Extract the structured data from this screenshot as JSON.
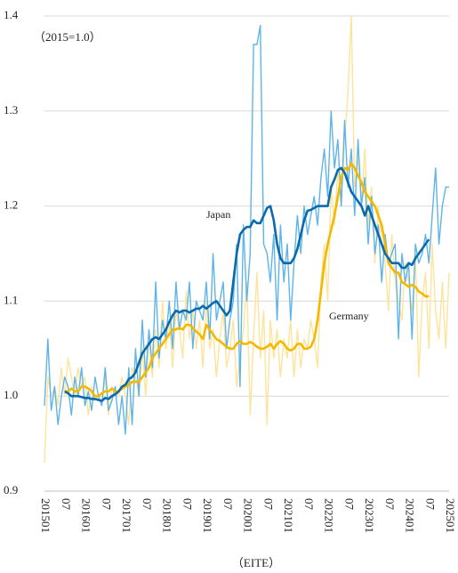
{
  "chart_data": {
    "type": "line",
    "subtitle": "（2015=1.0）",
    "source": "（EITE）",
    "categories": [
      "201501",
      null,
      null,
      null,
      null,
      null,
      "07",
      null,
      null,
      null,
      null,
      null,
      "201601",
      null,
      null,
      null,
      null,
      null,
      "07",
      null,
      null,
      null,
      null,
      null,
      "201701",
      null,
      null,
      null,
      null,
      null,
      "07",
      null,
      null,
      null,
      null,
      null,
      "201801",
      null,
      null,
      null,
      null,
      null,
      "07",
      null,
      null,
      null,
      null,
      null,
      "201901",
      null,
      null,
      null,
      null,
      null,
      "07",
      null,
      null,
      null,
      null,
      null,
      "202001",
      null,
      null,
      null,
      null,
      null,
      "07",
      null,
      null,
      null,
      null,
      null,
      "202101",
      null,
      null,
      null,
      null,
      null,
      "07",
      null,
      null,
      null,
      null,
      null,
      "202201",
      null,
      null,
      null,
      null,
      null,
      "07",
      null,
      null,
      null,
      null,
      null,
      "202301",
      null,
      null,
      null,
      null,
      null,
      "07",
      null,
      null,
      null,
      null,
      null,
      "202401",
      null,
      null,
      null,
      null,
      null,
      "07",
      null,
      null,
      null,
      null,
      null,
      "202501"
    ],
    "series": [
      {
        "color": "#fde49a",
        "values": [
          0.93,
          1.02,
          1.0,
          1.01,
          0.99,
          1.03,
          1.0,
          1.04,
          1.02,
          1.0,
          1.03,
          1.01,
          1.02,
          0.98,
          1.01,
          0.995,
          1.0,
          0.99,
          1.02,
          0.98,
          1.01,
          1.005,
          1.0,
          1.02,
          1.0,
          0.97,
          1.03,
          1.02,
          1.0,
          1.05,
          1.0,
          1.06,
          1.02,
          1.07,
          1.03,
          1.1,
          1.05,
          1.08,
          1.03,
          1.09,
          1.07,
          1.04,
          1.11,
          1.06,
          1.09,
          1.05,
          1.08,
          1.03,
          1.1,
          1.05,
          1.07,
          1.02,
          1.06,
          1.09,
          1.03,
          1.05,
          1.08,
          1.01,
          1.04,
          1.07,
          1.12,
          0.98,
          1.06,
          1.13,
          1.04,
          1.09,
          0.97,
          1.08,
          1.04,
          1.07,
          1.02,
          1.06,
          1.04,
          1.08,
          1.02,
          1.07,
          1.03,
          1.06,
          1.05,
          1.08,
          1.06,
          1.03,
          1.12,
          1.16,
          1.1,
          1.22,
          1.18,
          1.24,
          1.2,
          1.27,
          1.32,
          1.4,
          1.22,
          1.25,
          1.2,
          1.26,
          1.18,
          1.22,
          1.14,
          1.2,
          1.16,
          1.14,
          1.09,
          1.17,
          1.12,
          1.1,
          1.08,
          1.14,
          1.12,
          1.09,
          1.15,
          1.02,
          1.1,
          1.13,
          1.05,
          1.16,
          1.09,
          1.06,
          1.12,
          1.05,
          1.13
        ]
      },
      {
        "color": "#5eb4e8",
        "values": [
          0.99,
          1.06,
          0.985,
          1.01,
          0.97,
          1.0,
          1.02,
          1.01,
          0.98,
          1.02,
          1.0,
          1.03,
          0.99,
          1.005,
          0.985,
          1.02,
          1.0,
          0.99,
          1.03,
          0.985,
          0.995,
          1.01,
          0.97,
          1.0,
          0.96,
          1.03,
          0.97,
          1.05,
          1.0,
          1.08,
          1.02,
          1.07,
          1.03,
          1.12,
          1.04,
          1.08,
          1.06,
          1.1,
          1.05,
          1.12,
          1.07,
          1.09,
          1.08,
          1.12,
          1.05,
          1.1,
          1.09,
          1.08,
          1.12,
          1.06,
          1.15,
          1.08,
          1.1,
          1.12,
          1.05,
          1.08,
          1.1,
          1.16,
          1.01,
          1.18,
          1.1,
          1.15,
          1.37,
          1.37,
          1.39,
          1.16,
          1.15,
          1.12,
          1.17,
          1.08,
          1.18,
          1.12,
          1.16,
          1.08,
          1.14,
          1.19,
          1.15,
          1.2,
          1.17,
          1.19,
          1.21,
          1.18,
          1.23,
          1.26,
          1.21,
          1.3,
          1.24,
          1.27,
          1.2,
          1.29,
          1.22,
          1.26,
          1.19,
          1.27,
          1.2,
          1.23,
          1.16,
          1.21,
          1.15,
          1.18,
          1.12,
          1.17,
          1.14,
          1.15,
          1.16,
          1.06,
          1.15,
          1.12,
          1.14,
          1.06,
          1.16,
          1.14,
          1.15,
          1.17,
          1.14,
          1.19,
          1.24,
          1.16,
          1.2,
          1.22,
          1.22
        ]
      },
      {
        "name": "Germany",
        "color": "#f5b800",
        "values": [
          null,
          null,
          null,
          null,
          null,
          null,
          1.005,
          1.005,
          1.008,
          1.005,
          1.005,
          1.01,
          1.01,
          1.008,
          1.005,
          1.0,
          1.0,
          1.003,
          1.005,
          1.005,
          1.008,
          1.005,
          1.005,
          1.008,
          1.01,
          1.012,
          1.015,
          1.015,
          1.015,
          1.02,
          1.025,
          1.03,
          1.04,
          1.045,
          1.05,
          1.055,
          1.06,
          1.065,
          1.07,
          1.07,
          1.072,
          1.07,
          1.075,
          1.075,
          1.072,
          1.068,
          1.065,
          1.06,
          1.075,
          1.07,
          1.065,
          1.06,
          1.058,
          1.055,
          1.052,
          1.05,
          1.05,
          1.055,
          1.058,
          1.055,
          1.055,
          1.057,
          1.055,
          1.052,
          1.05,
          1.05,
          1.052,
          1.055,
          1.05,
          1.055,
          1.058,
          1.055,
          1.05,
          1.048,
          1.05,
          1.055,
          1.055,
          1.05,
          1.05,
          1.052,
          1.06,
          1.08,
          1.11,
          1.14,
          1.16,
          1.175,
          1.19,
          1.21,
          1.23,
          1.24,
          1.238,
          1.245,
          1.24,
          1.232,
          1.225,
          1.215,
          1.21,
          1.205,
          1.2,
          1.19,
          1.18,
          1.16,
          1.14,
          1.135,
          1.13,
          1.13,
          1.12,
          1.118,
          1.115,
          1.117,
          1.115,
          1.11,
          1.108,
          1.105,
          1.105,
          null,
          null,
          null,
          null,
          null,
          null
        ]
      },
      {
        "name": "Japan",
        "color": "#0a6aad",
        "values": [
          null,
          null,
          null,
          null,
          null,
          null,
          1.005,
          1.003,
          1.0,
          1.0,
          1.0,
          0.999,
          0.998,
          0.998,
          0.997,
          0.997,
          0.996,
          0.995,
          0.998,
          0.997,
          1.0,
          1.002,
          1.005,
          1.01,
          1.012,
          1.018,
          1.02,
          1.025,
          1.035,
          1.045,
          1.05,
          1.055,
          1.06,
          1.062,
          1.06,
          1.065,
          1.07,
          1.078,
          1.085,
          1.09,
          1.088,
          1.09,
          1.09,
          1.088,
          1.09,
          1.092,
          1.092,
          1.095,
          1.092,
          1.095,
          1.098,
          1.1,
          1.095,
          1.09,
          1.085,
          1.09,
          1.12,
          1.15,
          1.17,
          1.175,
          1.178,
          1.178,
          1.185,
          1.182,
          1.182,
          1.19,
          1.198,
          1.2,
          1.185,
          1.16,
          1.145,
          1.14,
          1.14,
          1.14,
          1.145,
          1.155,
          1.17,
          1.185,
          1.195,
          1.196,
          1.198,
          1.2,
          1.2,
          1.2,
          1.2,
          1.22,
          1.228,
          1.238,
          1.24,
          1.235,
          1.225,
          1.215,
          1.21,
          1.205,
          1.2,
          1.19,
          1.2,
          1.19,
          1.18,
          1.17,
          1.16,
          1.15,
          1.145,
          1.14,
          1.14,
          1.14,
          1.135,
          1.135,
          1.14,
          1.138,
          1.145,
          1.15,
          1.155,
          1.16,
          1.165,
          null,
          null,
          null,
          null,
          null,
          null
        ]
      }
    ],
    "ylim": [
      0.9,
      1.4
    ],
    "yticks": [
      0.9,
      {
        "value": 1,
        "label": "1.0"
      },
      1.1,
      1.2,
      1.3,
      1.4
    ],
    "grid": true
  }
}
